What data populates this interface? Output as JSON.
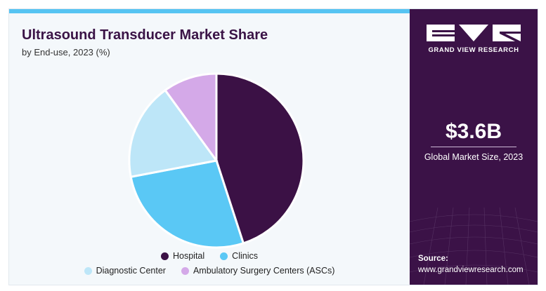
{
  "title": "Ultrasound Transducer Market Share",
  "subtitle": "by End-use, 2023 (%)",
  "chart_data": {
    "type": "pie",
    "categories": [
      "Hospital",
      "Clinics",
      "Diagnostic Center",
      "Ambulatory Surgery Centers (ASCs)"
    ],
    "values": [
      45,
      27,
      18,
      10
    ],
    "colors": [
      "#3b1145",
      "#5ac8f5",
      "#bde6f8",
      "#d4a9e8"
    ],
    "legend_position": "bottom"
  },
  "sidebar": {
    "brand": "GRAND VIEW RESEARCH",
    "market_size": "$3.6B",
    "market_label": "Global Market Size, 2023",
    "source_label": "Source:",
    "source_url": "www.grandviewresearch.com"
  }
}
